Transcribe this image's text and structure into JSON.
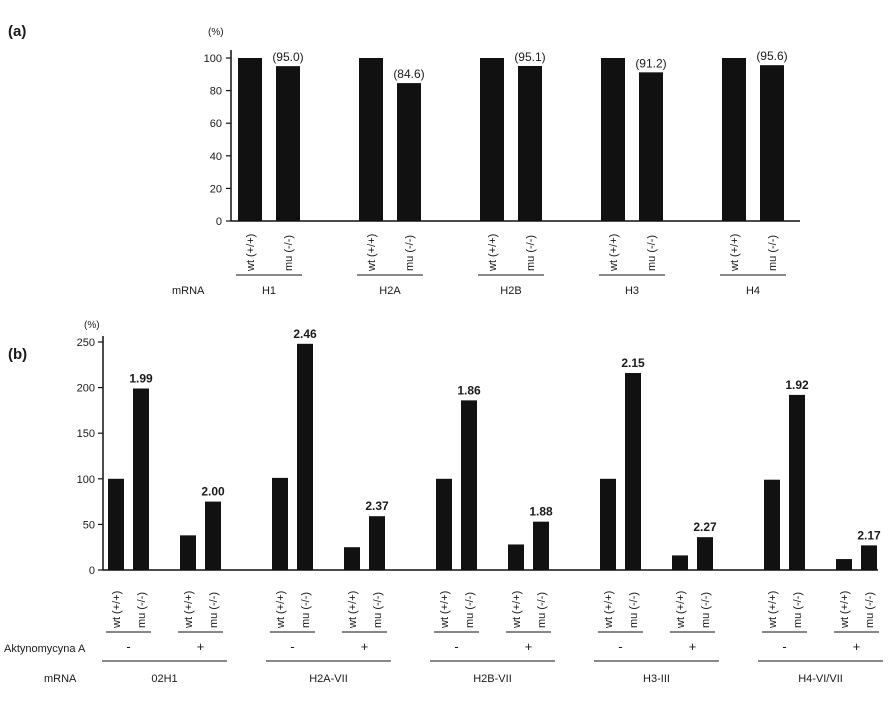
{
  "chart_data": [
    {
      "type": "bar",
      "panel": "(a)",
      "unit": "(%)",
      "ylim": [
        0,
        100
      ],
      "yticks": [
        0,
        20,
        40,
        60,
        80,
        100
      ],
      "conditions": [
        "wt (+/+)",
        "mu (-/-)"
      ],
      "row_label": "mRNA",
      "groups": [
        {
          "gene": "H1",
          "values": [
            100,
            95.0
          ],
          "annotation": "(95.0)"
        },
        {
          "gene": "H2A",
          "values": [
            100,
            84.6
          ],
          "annotation": "(84.6)"
        },
        {
          "gene": "H2B",
          "values": [
            100,
            95.1
          ],
          "annotation": "(95.1)"
        },
        {
          "gene": "H3",
          "values": [
            100,
            91.2
          ],
          "annotation": "(91.2)"
        },
        {
          "gene": "H4",
          "values": [
            100,
            95.6
          ],
          "annotation": "(95.6)"
        }
      ]
    },
    {
      "type": "bar",
      "panel": "(b)",
      "unit": "(%)",
      "ylim": [
        0,
        250
      ],
      "yticks": [
        0,
        50,
        100,
        150,
        200,
        250
      ],
      "conditions": [
        "wt (+/+)",
        "mu (-/-)"
      ],
      "treatment_label": "Aktynomycyna A",
      "treatment_signs": [
        "-",
        "+"
      ],
      "row_label": "mRNA",
      "groups": [
        {
          "gene": "02H1",
          "minus": [
            100,
            199
          ],
          "minus_annotation": "1.99",
          "plus": [
            38,
            75
          ],
          "plus_annotation": "2.00"
        },
        {
          "gene": "H2A-VII",
          "minus": [
            101,
            248
          ],
          "minus_annotation": "2.46",
          "plus": [
            25,
            59
          ],
          "plus_annotation": "2.37"
        },
        {
          "gene": "H2B-VII",
          "minus": [
            100,
            186
          ],
          "minus_annotation": "1.86",
          "plus": [
            28,
            53
          ],
          "plus_annotation": "1.88"
        },
        {
          "gene": "H3-III",
          "minus": [
            100,
            216
          ],
          "minus_annotation": "2.15",
          "plus": [
            16,
            36
          ],
          "plus_annotation": "2.27"
        },
        {
          "gene": "H4-VI/VII",
          "minus": [
            99,
            192
          ],
          "minus_annotation": "1.92",
          "plus": [
            12,
            27
          ],
          "plus_annotation": "2.17"
        }
      ]
    }
  ]
}
